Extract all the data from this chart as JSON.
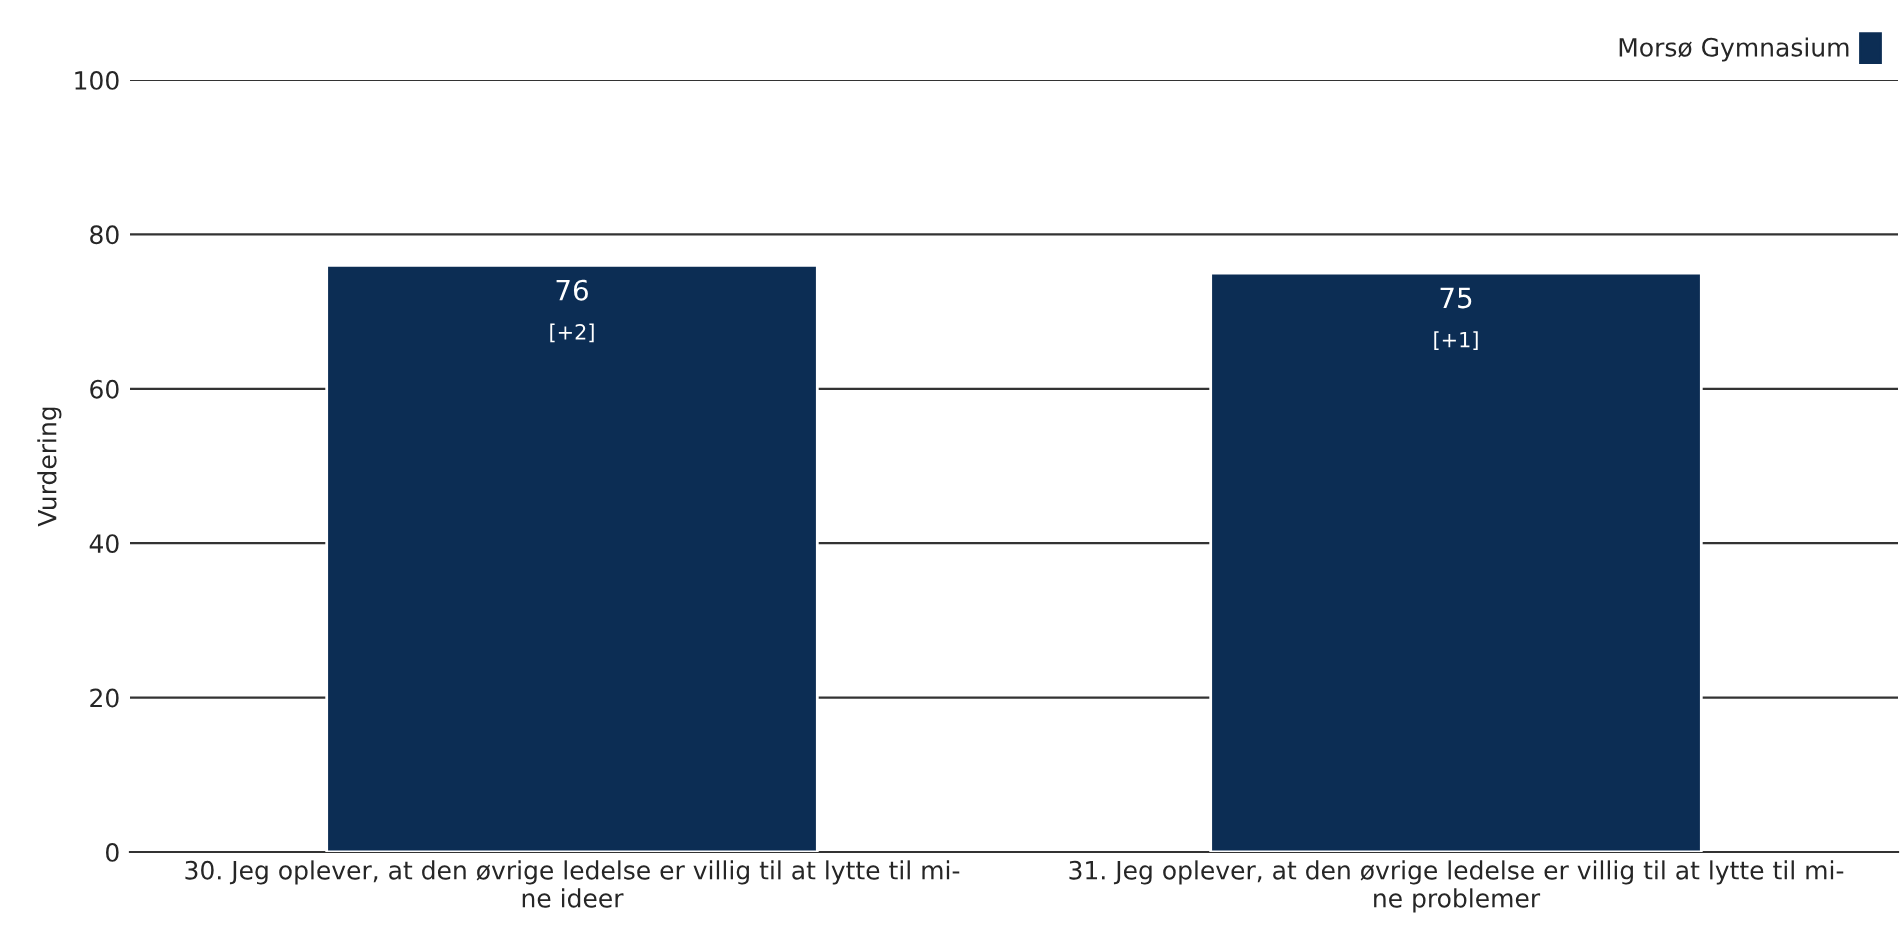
{
  "chart_data": {
    "type": "bar",
    "ylabel": "Vurdering",
    "categories": [
      "30. Jeg oplever, at den øvrige ledelse er villig til at lytte til mi-\nne ideer",
      "31. Jeg oplever, at den øvrige ledelse er villig til at lytte til mi-\nne problemer"
    ],
    "series": [
      {
        "name": "Morsø Gymnasium",
        "color": "#0c2d54",
        "values": [
          76,
          75
        ],
        "value_labels": [
          "76\n[+2]",
          "75\n[+1]"
        ]
      }
    ],
    "ylim": [
      0,
      100
    ],
    "yticks": [
      0,
      20,
      40,
      60,
      80,
      100
    ],
    "grid": "y",
    "legend": "top right"
  }
}
